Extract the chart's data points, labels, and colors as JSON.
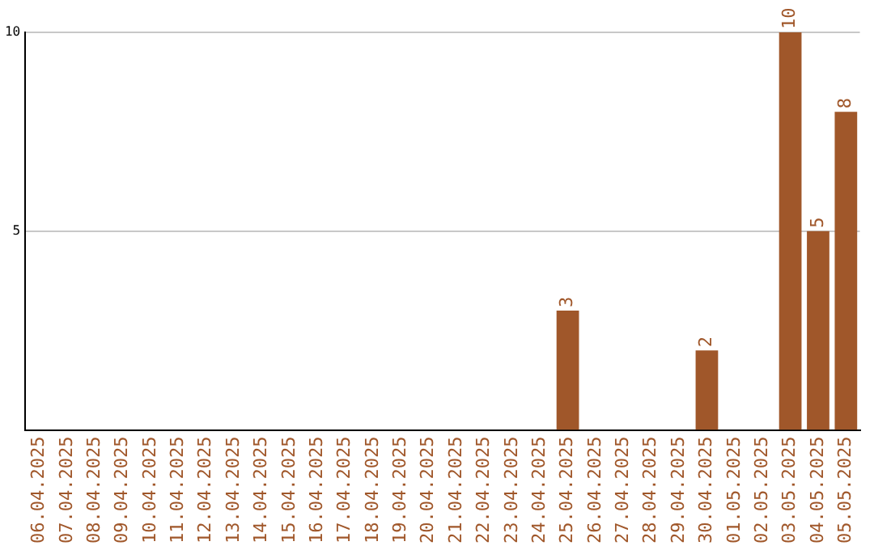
{
  "chart_data": {
    "type": "bar",
    "categories": [
      "06.04.2025",
      "07.04.2025",
      "08.04.2025",
      "09.04.2025",
      "10.04.2025",
      "11.04.2025",
      "12.04.2025",
      "13.04.2025",
      "14.04.2025",
      "15.04.2025",
      "16.04.2025",
      "17.04.2025",
      "18.04.2025",
      "19.04.2025",
      "20.04.2025",
      "21.04.2025",
      "22.04.2025",
      "23.04.2025",
      "24.04.2025",
      "25.04.2025",
      "26.04.2025",
      "27.04.2025",
      "28.04.2025",
      "29.04.2025",
      "30.04.2025",
      "01.05.2025",
      "02.05.2025",
      "03.05.2025",
      "04.05.2025",
      "05.05.2025"
    ],
    "values": [
      0,
      0,
      0,
      0,
      0,
      0,
      0,
      0,
      0,
      0,
      0,
      0,
      0,
      0,
      0,
      0,
      0,
      0,
      0,
      3,
      0,
      0,
      0,
      0,
      2,
      0,
      0,
      10,
      5,
      8
    ],
    "value_labels": [
      null,
      null,
      null,
      null,
      null,
      null,
      null,
      null,
      null,
      null,
      null,
      null,
      null,
      null,
      null,
      null,
      null,
      null,
      null,
      "3",
      null,
      null,
      null,
      null,
      "2",
      null,
      null,
      "10",
      "5",
      "8"
    ],
    "color": "#a0572a",
    "ylim": [
      0,
      10
    ],
    "yticks": [
      5,
      10
    ],
    "grid": "y",
    "legend": false
  }
}
